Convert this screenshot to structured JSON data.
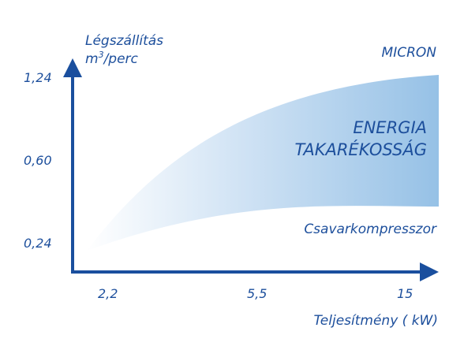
{
  "chart_data": {
    "type": "area",
    "ylabel_line1": "Légszállítás",
    "ylabel_line2_base": "m",
    "ylabel_line2_sup": "3",
    "ylabel_line2_rest": "/perc",
    "xlabel": "Teljesítmény ( kW)",
    "y_ticks": [
      "1,24",
      "0,60",
      "0,24"
    ],
    "x_ticks": [
      "2,2",
      "5,5",
      "15"
    ],
    "series": [
      {
        "name": "MICRON"
      },
      {
        "name": "Csavarkompresszor"
      }
    ],
    "band_label_line1": "ENERGIA",
    "band_label_line2": "TAKARÉKOSSÁG"
  },
  "colors": {
    "axis": "#1a4f9e",
    "text": "#1d4f9c",
    "band": "#9fc6e8"
  }
}
